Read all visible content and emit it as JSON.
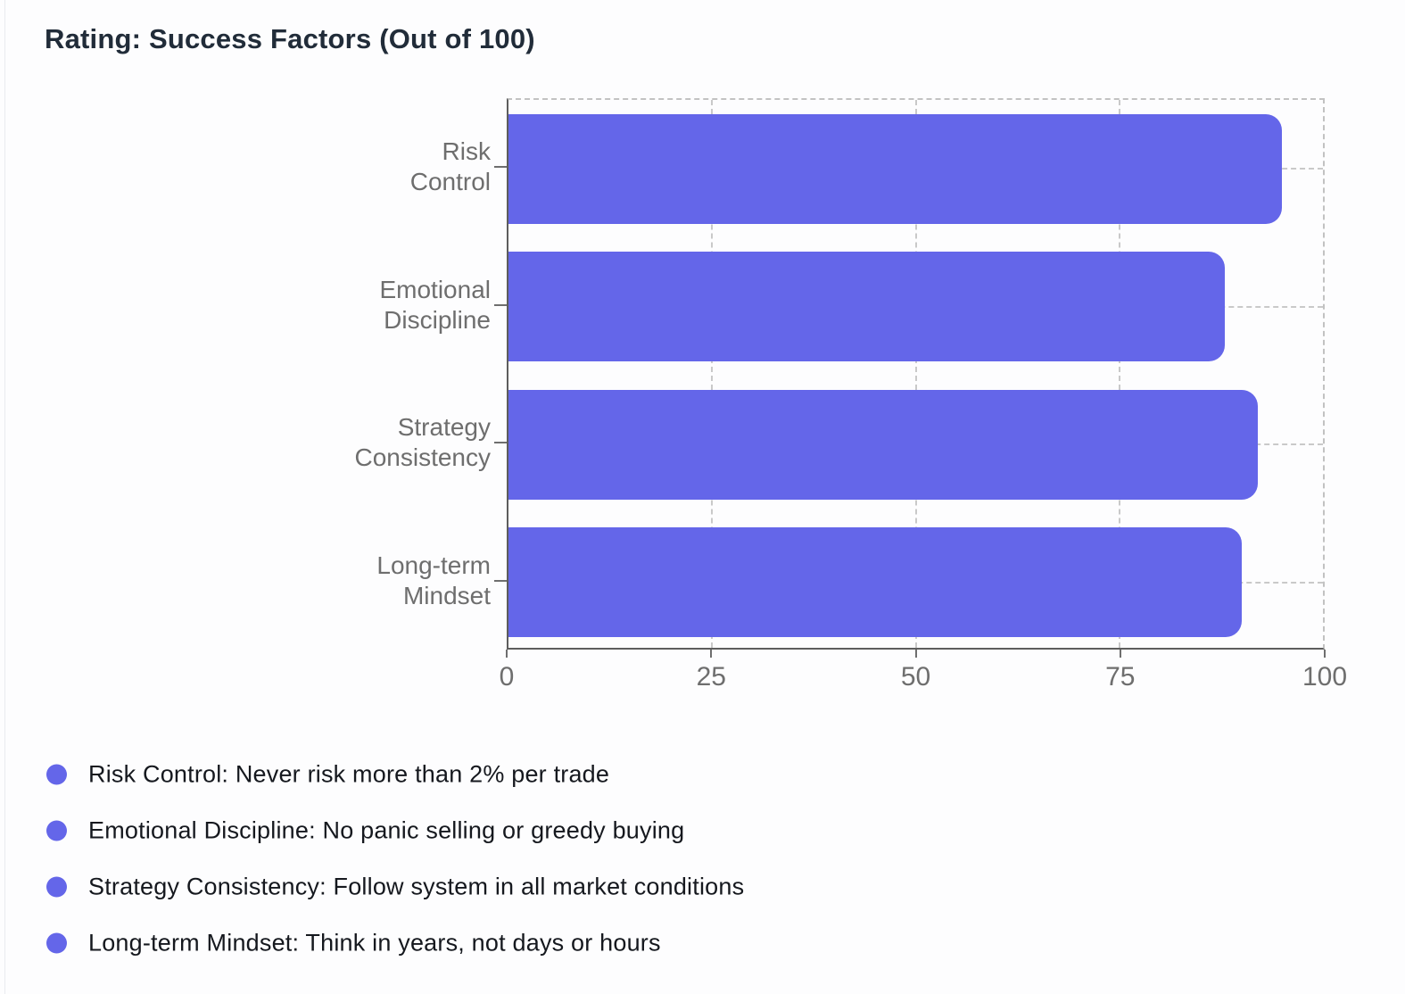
{
  "title": "Rating: Success Factors (Out of 100)",
  "colors": {
    "bar": "#6466e9",
    "title_text": "#212c39",
    "axis_text": "#6e6e6e",
    "legend_text": "#15181e",
    "axis_line": "#5d5d5d",
    "gridline": "#c9c9c9"
  },
  "chart_data": {
    "type": "bar",
    "orientation": "horizontal",
    "title": "Rating: Success Factors (Out of 100)",
    "categories": [
      "Risk Control",
      "Emotional Discipline",
      "Strategy Consistency",
      "Long-term Mindset"
    ],
    "category_label_lines": [
      "Risk\nControl",
      "Emotional\nDiscipline",
      "Strategy\nConsistency",
      "Long-term\nMindset"
    ],
    "values": [
      95,
      88,
      92,
      90
    ],
    "xlabel": "",
    "ylabel": "",
    "xlim": [
      0,
      100
    ],
    "x_ticks": [
      0,
      25,
      50,
      75,
      100
    ],
    "x_tick_labels": [
      "0",
      "25",
      "50",
      "75",
      "100"
    ],
    "grid": "dashed",
    "legend_position": "below"
  },
  "legend": {
    "items": [
      {
        "label": "Risk Control: Never risk more than 2% per trade"
      },
      {
        "label": "Emotional Discipline: No panic selling or greedy buying"
      },
      {
        "label": "Strategy Consistency: Follow system in all market conditions"
      },
      {
        "label": "Long-term Mindset: Think in years, not days or hours"
      }
    ]
  }
}
